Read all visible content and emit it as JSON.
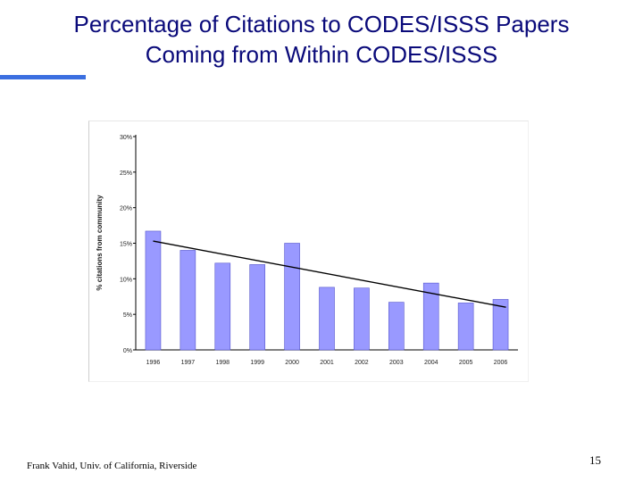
{
  "slide": {
    "title_line1": "Percentage of Citations to CODES/ISSS Papers",
    "title_line2": "Coming from Within CODES/ISSS",
    "footer": "Frank Vahid, Univ. of California, Riverside",
    "page_number": "15"
  },
  "colors": {
    "title": "#0a0a7a",
    "accent_bar": "#3b6fe0",
    "bar_fill": "#9999ff",
    "bar_stroke": "#5555cc",
    "trend_line": "#000000"
  },
  "chart_data": {
    "type": "bar",
    "title": "",
    "xlabel": "",
    "ylabel": "% citations from community",
    "categories": [
      "1996",
      "1997",
      "1998",
      "1999",
      "2000",
      "2001",
      "2002",
      "2003",
      "2004",
      "2005",
      "2006"
    ],
    "values": [
      16.7,
      14.0,
      12.2,
      12.0,
      15.0,
      8.8,
      8.7,
      6.7,
      9.4,
      6.6,
      7.1
    ],
    "y_ticks": [
      0,
      5,
      10,
      15,
      20,
      25,
      30
    ],
    "y_tick_labels": [
      "0%",
      "5%",
      "10%",
      "15%",
      "20%",
      "25%",
      "30%"
    ],
    "ylim": [
      0,
      30
    ],
    "grid": false,
    "legend": "none",
    "trend_line": {
      "start": 15.3,
      "end": 6.0
    }
  }
}
